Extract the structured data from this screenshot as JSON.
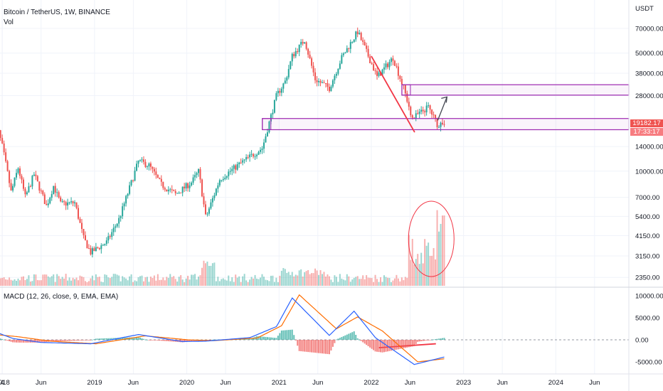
{
  "header": {
    "title": "Bitcoin / TetherUS, 1W, BINANCE",
    "volume_label": "Vol",
    "currency": "USDT"
  },
  "price_axis": {
    "ticks": [
      "70000.00",
      "50000.00",
      "38000.00",
      "28000.00",
      "14000.00",
      "10000.00",
      "7000.00",
      "5400.00",
      "4150.00",
      "3150.00",
      "2350.00"
    ],
    "current_price": "19182.17",
    "countdown": "17:33:17"
  },
  "macd_axis": {
    "ticks": [
      "10000.00",
      "5000.00",
      "0.00",
      "-5000.00"
    ]
  },
  "time_axis": {
    "ticks": [
      "4",
      "2018",
      "Jun",
      "2019",
      "Jun",
      "2020",
      "Jun",
      "2021",
      "Jun",
      "2022",
      "Jun",
      "2023",
      "Jun",
      "2024",
      "Jun"
    ]
  },
  "macd": {
    "label": "MACD (12, 26, close, 9, EMA, EMA)"
  },
  "colors": {
    "up": "#26a69a",
    "down": "#ef5350",
    "macd_line": "#2962ff",
    "signal_line": "#ff6d00",
    "zone": "#9c27b0",
    "trend_line": "#f23645",
    "arrow": "#434651"
  },
  "chart_data": [
    {
      "type": "line",
      "title": "Bitcoin / TetherUS, 1W, BINANCE",
      "y_scale": "log",
      "ylabel": "USDT",
      "ylim": [
        2000,
        90000
      ],
      "xlim": [
        "2017-11-20",
        "2024-10-15"
      ],
      "series": [
        {
          "name": "BTCUSDT",
          "points": [
            [
              "2017-11-20",
              5500
            ],
            [
              "2017-12-04",
              11000
            ],
            [
              "2017-12-18",
              17000
            ],
            [
              "2018-01-01",
              14000
            ],
            [
              "2018-01-15",
              11000
            ],
            [
              "2018-02-05",
              7500
            ],
            [
              "2018-03-05",
              10500
            ],
            [
              "2018-04-02",
              7000
            ],
            [
              "2018-05-07",
              9600
            ],
            [
              "2018-06-25",
              6200
            ],
            [
              "2018-07-23",
              8200
            ],
            [
              "2018-08-20",
              6400
            ],
            [
              "2018-10-15",
              6500
            ],
            [
              "2018-11-19",
              4000
            ],
            [
              "2018-12-17",
              3300
            ],
            [
              "2019-02-18",
              3800
            ],
            [
              "2019-04-08",
              5200
            ],
            [
              "2019-05-27",
              8600
            ],
            [
              "2019-06-24",
              11500
            ],
            [
              "2019-08-05",
              10800
            ],
            [
              "2019-09-23",
              8300
            ],
            [
              "2019-11-18",
              7300
            ],
            [
              "2020-01-20",
              8600
            ],
            [
              "2020-02-17",
              10000
            ],
            [
              "2020-03-16",
              5300
            ],
            [
              "2020-05-11",
              9000
            ],
            [
              "2020-07-27",
              11000
            ],
            [
              "2020-10-26",
              13700
            ],
            [
              "2020-12-21",
              28000
            ],
            [
              "2021-01-25",
              34000
            ],
            [
              "2021-02-22",
              48000
            ],
            [
              "2021-04-12",
              60000
            ],
            [
              "2021-05-24",
              35000
            ],
            [
              "2021-07-19",
              31000
            ],
            [
              "2021-09-06",
              47000
            ],
            [
              "2021-11-08",
              67000
            ],
            [
              "2022-01-03",
              43000
            ],
            [
              "2022-01-24",
              36000
            ],
            [
              "2022-03-28",
              47000
            ],
            [
              "2022-05-09",
              31000
            ],
            [
              "2022-06-13",
              20500
            ],
            [
              "2022-08-15",
              24000
            ],
            [
              "2022-09-19",
              19000
            ],
            [
              "2022-10-17",
              19182.17
            ]
          ]
        }
      ],
      "zones": [
        {
          "range": [
            17600,
            20500
          ],
          "from": "2020-10-26"
        },
        {
          "range": [
            28200,
            32500
          ],
          "from": "2022-05-02"
        }
      ],
      "volume": {
        "label": "Vol",
        "note": "weekly volume bars, spike in mid-2022 circled"
      }
    },
    {
      "type": "line",
      "title": "MACD (12, 26, close, 9, EMA, EMA)",
      "ylim": [
        -6500,
        12000
      ],
      "series": [
        {
          "name": "MACD",
          "points": [
            [
              "2017-12-04",
              1800
            ],
            [
              "2018-02-12",
              300
            ],
            [
              "2018-06-04",
              -600
            ],
            [
              "2018-12-17",
              -900
            ],
            [
              "2019-06-24",
              1200
            ],
            [
              "2019-12-16",
              -400
            ],
            [
              "2020-03-16",
              -300
            ],
            [
              "2020-09-07",
              500
            ],
            [
              "2020-12-21",
              3000
            ],
            [
              "2021-02-22",
              9500
            ],
            [
              "2021-07-19",
              1000
            ],
            [
              "2021-10-25",
              6500
            ],
            [
              "2022-01-17",
              500
            ],
            [
              "2022-06-20",
              -5600
            ],
            [
              "2022-10-17",
              -3900
            ]
          ]
        },
        {
          "name": "Signal",
          "points": [
            [
              "2017-12-04",
              1200
            ],
            [
              "2018-03-05",
              700
            ],
            [
              "2018-07-09",
              -300
            ],
            [
              "2019-01-07",
              -900
            ],
            [
              "2019-07-22",
              900
            ],
            [
              "2020-01-06",
              0
            ],
            [
              "2020-04-13",
              -200
            ],
            [
              "2020-10-05",
              400
            ],
            [
              "2021-01-11",
              3200
            ],
            [
              "2021-03-22",
              10200
            ],
            [
              "2021-08-16",
              2500
            ],
            [
              "2021-11-08",
              5200
            ],
            [
              "2022-02-14",
              2000
            ],
            [
              "2022-07-04",
              -5000
            ],
            [
              "2022-10-17",
              -4300
            ]
          ]
        }
      ]
    }
  ]
}
